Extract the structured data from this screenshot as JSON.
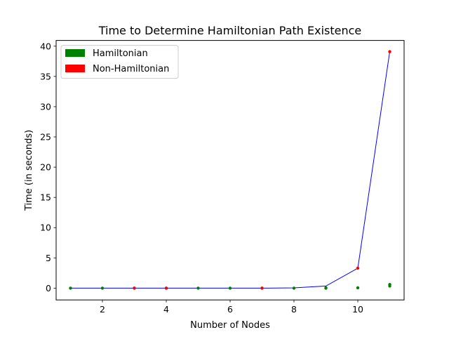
{
  "chart_data": {
    "type": "scatter",
    "title": "Time to Determine Hamiltonian Path Existence",
    "xlabel": "Number of Nodes",
    "ylabel": "Time (in seconds)",
    "xlim": [
      0.55,
      11.45
    ],
    "ylim": [
      -1.95,
      40.95
    ],
    "xticks": [
      2,
      4,
      6,
      8,
      10
    ],
    "yticks": [
      0,
      5,
      10,
      15,
      20,
      25,
      30,
      35,
      40
    ],
    "grid": false,
    "legend_position": "upper-left",
    "legend": [
      {
        "label": "Hamiltonian",
        "color": "#008000"
      },
      {
        "label": "Non-Hamiltonian",
        "color": "#ff0000"
      }
    ],
    "series": [
      {
        "name": "Hamiltonian",
        "kind": "scatter",
        "color": "#008000",
        "points": [
          [
            1,
            0.0
          ],
          [
            2,
            0.0
          ],
          [
            3,
            0.0
          ],
          [
            4,
            0.0
          ],
          [
            5,
            0.0
          ],
          [
            6,
            0.0
          ],
          [
            7,
            0.0
          ],
          [
            8,
            0.0
          ],
          [
            9,
            0.0
          ],
          [
            9,
            0.05
          ],
          [
            10,
            0.05
          ],
          [
            11,
            0.35
          ],
          [
            11,
            0.6
          ]
        ]
      },
      {
        "name": "Non-Hamiltonian",
        "kind": "scatter",
        "color": "#ff0000",
        "points": [
          [
            3,
            0.0
          ],
          [
            4,
            0.0
          ],
          [
            7,
            0.0
          ],
          [
            10,
            3.3
          ],
          [
            11,
            39.1
          ]
        ]
      },
      {
        "kind": "line",
        "color": "#0000ff",
        "points": [
          [
            1,
            0.0
          ],
          [
            2,
            0.0
          ],
          [
            3,
            0.0
          ],
          [
            4,
            0.0
          ],
          [
            5,
            0.0
          ],
          [
            6,
            0.0
          ],
          [
            7,
            0.0
          ],
          [
            8,
            0.05
          ],
          [
            9,
            0.35
          ],
          [
            10,
            3.3
          ],
          [
            11,
            39.1
          ]
        ]
      }
    ]
  }
}
